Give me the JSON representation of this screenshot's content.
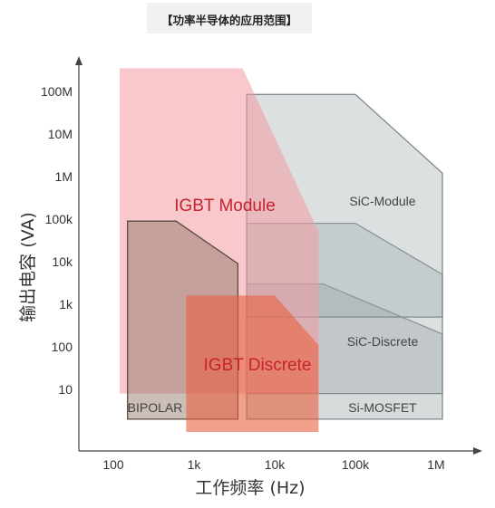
{
  "title": "【功率半导体的应用范围】",
  "chart_data": {
    "type": "area",
    "xlabel": "工作频率 (Hz)",
    "ylabel": "输出电容 (VA)",
    "x_scale": "log",
    "y_scale": "log",
    "x_ticks": [
      {
        "value": 100,
        "label": "100"
      },
      {
        "value": 1000,
        "label": "1k"
      },
      {
        "value": 10000,
        "label": "10k"
      },
      {
        "value": 100000,
        "label": "100k"
      },
      {
        "value": 1000000,
        "label": "1M"
      }
    ],
    "y_ticks": [
      {
        "value": 10,
        "label": "10"
      },
      {
        "value": 100,
        "label": "100"
      },
      {
        "value": 1000,
        "label": "1k"
      },
      {
        "value": 10000,
        "label": "10k"
      },
      {
        "value": 100000,
        "label": "100k"
      },
      {
        "value": 1000000,
        "label": "1M"
      },
      {
        "value": 10000000,
        "label": "10M"
      },
      {
        "value": 100000000,
        "label": "100M"
      }
    ],
    "regions": [
      {
        "name": "Si-MOSFET",
        "label": "Si-MOSFET",
        "fill": "#9aa5a8",
        "fill_opacity": 0.4,
        "stroke": "#7f8a8d",
        "polygon": [
          [
            4500,
            2
          ],
          [
            4500,
            3000
          ],
          [
            40000,
            3000
          ],
          [
            1200000,
            200
          ],
          [
            1200000,
            2
          ]
        ]
      },
      {
        "name": "SiC-Discrete",
        "label": "SiC-Discrete",
        "fill": "#9aa5a8",
        "fill_opacity": 0.35,
        "stroke": "#7f8a8d",
        "polygon": [
          [
            4500,
            8
          ],
          [
            4500,
            80000
          ],
          [
            100000,
            80000
          ],
          [
            1200000,
            5000
          ],
          [
            1200000,
            8
          ]
        ]
      },
      {
        "name": "SiC-Module",
        "label": "SiC-Module",
        "fill": "#9aa5a8",
        "fill_opacity": 0.35,
        "stroke": "#7f8a8d",
        "polygon": [
          [
            4500,
            500
          ],
          [
            4500,
            85000000
          ],
          [
            100000,
            85000000
          ],
          [
            1200000,
            1200000
          ],
          [
            1200000,
            500
          ]
        ]
      },
      {
        "name": "IGBT Module",
        "label": "IGBT Module",
        "fill": "#f29aa2",
        "fill_opacity": 0.55,
        "stroke": "none",
        "polygon": [
          [
            120,
            8
          ],
          [
            120,
            350000000
          ],
          [
            4000,
            350000000
          ],
          [
            35000,
            50000
          ],
          [
            35000,
            8
          ]
        ]
      },
      {
        "name": "BIPOLAR",
        "label": "BIPOLAR",
        "fill": "#8a6e60",
        "fill_opacity": 0.45,
        "stroke": "#5b4a42",
        "polygon": [
          [
            150,
            2
          ],
          [
            150,
            90000
          ],
          [
            600,
            90000
          ],
          [
            3500,
            9000
          ],
          [
            3500,
            2
          ]
        ]
      },
      {
        "name": "IGBT Discrete",
        "label": "IGBT Discrete",
        "fill": "#e8603f",
        "fill_opacity": 0.6,
        "stroke": "none",
        "polygon": [
          [
            800,
            1
          ],
          [
            800,
            1600
          ],
          [
            10000,
            1600
          ],
          [
            35000,
            110
          ],
          [
            35000,
            1
          ]
        ]
      }
    ]
  }
}
